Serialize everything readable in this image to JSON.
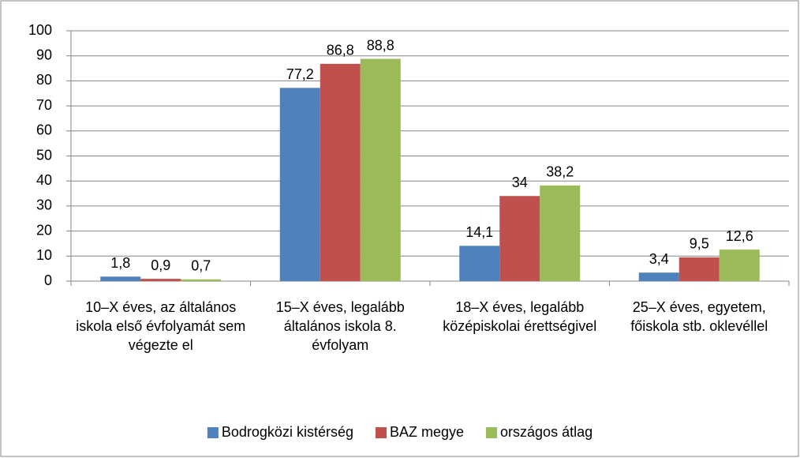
{
  "chart_data": {
    "type": "bar",
    "categories": [
      "10–X éves, az általános iskola első évfolyamát sem végezte el",
      "15–X éves, legalább általános iskola 8. évfolyam",
      "18–X éves, legalább középiskolai érettségivel",
      "25–X éves, egyetem, főiskola stb. oklevéllel"
    ],
    "series": [
      {
        "name": "Bodrogközi kistérség",
        "color": "#4f81bd",
        "values": [
          1.8,
          77.2,
          14.1,
          3.4
        ],
        "value_labels": [
          "1,8",
          "77,2",
          "14,1",
          "3,4"
        ]
      },
      {
        "name": "BAZ megye",
        "color": "#c0504d",
        "values": [
          0.9,
          86.8,
          34,
          9.5
        ],
        "value_labels": [
          "0,9",
          "86,8",
          "34",
          "9,5"
        ]
      },
      {
        "name": "országos átlag",
        "color": "#9bbb59",
        "values": [
          0.7,
          88.8,
          38.2,
          12.6
        ],
        "value_labels": [
          "0,7",
          "88,8",
          "38,2",
          "12,6"
        ]
      }
    ],
    "ylim": [
      0,
      100
    ],
    "yticks": [
      0,
      10,
      20,
      30,
      40,
      50,
      60,
      70,
      80,
      90,
      100
    ],
    "grid": true,
    "legend": "bottom"
  }
}
